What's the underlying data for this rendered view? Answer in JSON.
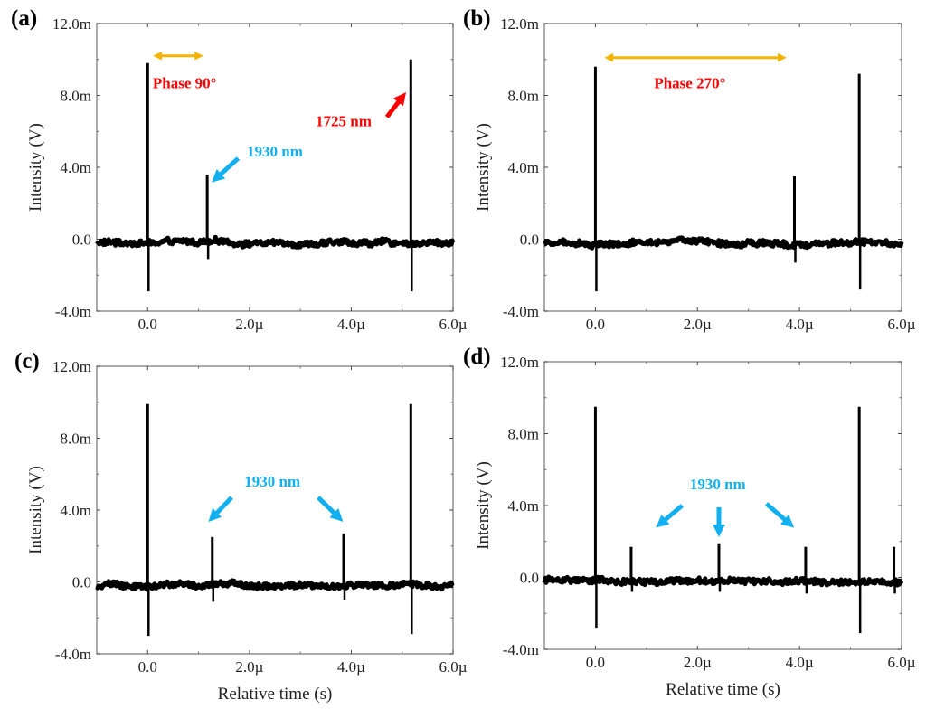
{
  "colors": {
    "trace": "#000000",
    "axis": "#7f7f7f",
    "phase_arrow": "#f5b400",
    "red_annotation": "#ff0000",
    "blue_annotation": "#12b0f0"
  },
  "chart_data": [
    {
      "type": "line",
      "panel_label": "(a)",
      "xlabel": "",
      "ylabel": "Intensity (V)",
      "xlim": [
        -1e-06,
        6e-06
      ],
      "ylim": [
        -0.004,
        0.012
      ],
      "x_ticks": [
        0,
        2e-06,
        4e-06,
        6e-06
      ],
      "x_tick_labels": [
        "0.0",
        "2.0µ",
        "4.0µ",
        "6.0µ"
      ],
      "y_ticks": [
        -0.004,
        0,
        0.004,
        0.008,
        0.012
      ],
      "y_tick_labels": [
        "-4.0m",
        "0.0",
        "4.0m",
        "8.0m",
        "12.0m"
      ],
      "baseline": -0.0002,
      "noise_amplitude": 0.0003,
      "spikes": [
        {
          "t": 0.0,
          "peak": 0.0098,
          "trough": -0.0029,
          "wavelength": "1725 nm"
        },
        {
          "t": 1.17e-06,
          "peak": 0.0036,
          "trough": -0.0011,
          "wavelength": "1930 nm"
        },
        {
          "t": 5.17e-06,
          "peak": 0.01,
          "trough": -0.0029,
          "wavelength": "1725 nm"
        }
      ],
      "annotations": [
        {
          "text": "Phase 90°",
          "color": "red",
          "x": 1e-07,
          "y": 0.0084
        },
        {
          "text": "1930 nm",
          "color": "blue",
          "x": 1.95e-06,
          "y": 0.0046
        },
        {
          "text": "1725 nm",
          "color": "red",
          "x": 3.3e-06,
          "y": 0.0063
        }
      ],
      "phase_arrow": {
        "x_start": 5e-08,
        "x_end": 1.15e-06,
        "y": 0.0102
      },
      "pointer_arrows": [
        {
          "color": "blue",
          "from": [
            1.78e-06,
            0.0045
          ],
          "to": [
            1.35e-06,
            0.0034
          ]
        },
        {
          "color": "red",
          "from": [
            4.7e-06,
            0.0068
          ],
          "to": [
            5e-06,
            0.0079
          ]
        }
      ]
    },
    {
      "type": "line",
      "panel_label": "(b)",
      "xlabel": "",
      "ylabel": "Intensity (V)",
      "xlim": [
        -1e-06,
        6e-06
      ],
      "ylim": [
        -0.004,
        0.012
      ],
      "x_ticks": [
        0,
        2e-06,
        4e-06,
        6e-06
      ],
      "x_tick_labels": [
        "0.0",
        "2.0µ",
        "4.0µ",
        "6.0µ"
      ],
      "y_ticks": [
        -0.004,
        0,
        0.004,
        0.008,
        0.012
      ],
      "y_tick_labels": [
        "-4.0m",
        "0.0",
        "4.0m",
        "8.0m",
        "12.0m"
      ],
      "baseline": -0.0002,
      "noise_amplitude": 0.0003,
      "spikes": [
        {
          "t": 0.0,
          "peak": 0.0096,
          "trough": -0.0029,
          "wavelength": "1725 nm"
        },
        {
          "t": 3.9e-06,
          "peak": 0.0035,
          "trough": -0.0013,
          "wavelength": "1930 nm"
        },
        {
          "t": 5.17e-06,
          "peak": 0.0092,
          "trough": -0.0028,
          "wavelength": "1725 nm"
        }
      ],
      "annotations": [
        {
          "text": "Phase 270°",
          "color": "red",
          "x": 1.15e-06,
          "y": 0.0084
        }
      ],
      "phase_arrow": {
        "x_start": 1.2e-07,
        "x_end": 3.8e-06,
        "y": 0.0101
      },
      "pointer_arrows": []
    },
    {
      "type": "line",
      "panel_label": "(c)",
      "xlabel": "Relative time (s)",
      "ylabel": "Intensity (V)",
      "xlim": [
        -1e-06,
        6e-06
      ],
      "ylim": [
        -0.004,
        0.012
      ],
      "x_ticks": [
        0,
        2e-06,
        4e-06,
        6e-06
      ],
      "x_tick_labels": [
        "0.0",
        "2.0µ",
        "4.0µ",
        "6.0µ"
      ],
      "y_ticks": [
        -0.004,
        0,
        0.004,
        0.008,
        0.012
      ],
      "y_tick_labels": [
        "-4.0m",
        "0.0",
        "4.0m",
        "8.0m",
        "12.0m"
      ],
      "baseline": -0.0002,
      "noise_amplitude": 0.0003,
      "spikes": [
        {
          "t": 0.0,
          "peak": 0.0099,
          "trough": -0.003,
          "wavelength": "1725 nm"
        },
        {
          "t": 1.27e-06,
          "peak": 0.0025,
          "trough": -0.0011,
          "wavelength": "1930 nm"
        },
        {
          "t": 3.85e-06,
          "peak": 0.0027,
          "trough": -0.001,
          "wavelength": "1930 nm"
        },
        {
          "t": 5.17e-06,
          "peak": 0.0099,
          "trough": -0.0029,
          "wavelength": "1725 nm"
        }
      ],
      "annotations": [
        {
          "text": "1930 nm",
          "color": "blue",
          "x": 1.9e-06,
          "y": 0.0053
        }
      ],
      "phase_arrow": null,
      "pointer_arrows": [
        {
          "color": "blue",
          "from": [
            1.65e-06,
            0.0047
          ],
          "to": [
            1.28e-06,
            0.0036
          ]
        },
        {
          "color": "blue",
          "from": [
            3.35e-06,
            0.0047
          ],
          "to": [
            3.75e-06,
            0.0036
          ]
        }
      ]
    },
    {
      "type": "line",
      "panel_label": "(d)",
      "xlabel": "Relative time (s)",
      "ylabel": "Intensity (V)",
      "xlim": [
        -1e-06,
        6e-06
      ],
      "ylim": [
        -0.004,
        0.012
      ],
      "x_ticks": [
        0,
        2e-06,
        4e-06,
        6e-06
      ],
      "x_tick_labels": [
        "0.0",
        "2.0µ",
        "4.0µ",
        "6.0µ"
      ],
      "y_ticks": [
        -0.004,
        0,
        0.004,
        0.008,
        0.012
      ],
      "y_tick_labels": [
        "-4.0m",
        "0.0",
        "4.0m",
        "8.0m",
        "12.0m"
      ],
      "baseline": -0.0002,
      "noise_amplitude": 0.0003,
      "spikes": [
        {
          "t": 0.0,
          "peak": 0.0095,
          "trough": -0.0028,
          "wavelength": "1725 nm"
        },
        {
          "t": 7e-07,
          "peak": 0.0017,
          "trough": -0.0008,
          "wavelength": "1930 nm"
        },
        {
          "t": 2.42e-06,
          "peak": 0.0019,
          "trough": -0.0008,
          "wavelength": "1930 nm"
        },
        {
          "t": 4.12e-06,
          "peak": 0.0017,
          "trough": -0.0009,
          "wavelength": "1930 nm"
        },
        {
          "t": 5.17e-06,
          "peak": 0.0095,
          "trough": -0.0031,
          "wavelength": "1725 nm"
        },
        {
          "t": 5.85e-06,
          "peak": 0.0017,
          "trough": -0.0009,
          "wavelength": "1930 nm"
        }
      ],
      "annotations": [
        {
          "text": "1930 nm",
          "color": "blue",
          "x": 1.85e-06,
          "y": 0.0049
        }
      ],
      "phase_arrow": null,
      "pointer_arrows": [
        {
          "color": "blue",
          "from": [
            1.7e-06,
            0.004
          ],
          "to": [
            1.28e-06,
            0.003
          ]
        },
        {
          "color": "blue",
          "from": [
            2.42e-06,
            0.0039
          ],
          "to": [
            2.42e-06,
            0.0026
          ]
        },
        {
          "color": "blue",
          "from": [
            3.35e-06,
            0.0041
          ],
          "to": [
            3.8e-06,
            0.003
          ]
        }
      ]
    }
  ]
}
